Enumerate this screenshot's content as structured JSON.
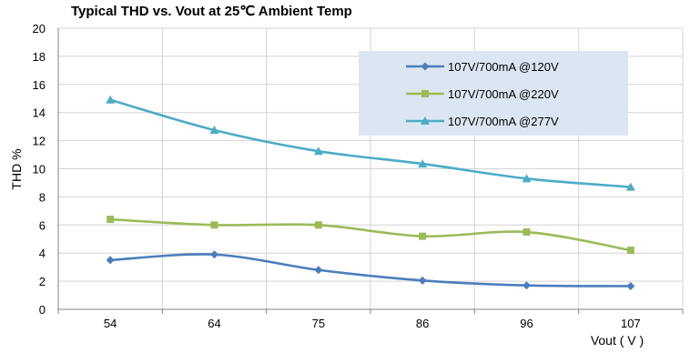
{
  "chart_data": {
    "type": "line",
    "title": "Typical THD vs. Vout at 25℃ Ambient Temp",
    "xlabel": "Vout ( V )",
    "ylabel": "THD %",
    "categories": [
      "54",
      "64",
      "75",
      "86",
      "96",
      "107"
    ],
    "ylim": [
      0,
      20
    ],
    "yticks": [
      "0",
      "2",
      "4",
      "6",
      "8",
      "10",
      "12",
      "14",
      "16",
      "18",
      "20"
    ],
    "grid": true,
    "legend_position": "top-right",
    "series": [
      {
        "name": "107V/700mA @120V",
        "color": "#4a7ebb",
        "marker": "diamond",
        "values": [
          3.5,
          3.9,
          2.8,
          2.05,
          1.7,
          1.65
        ]
      },
      {
        "name": "107V/700mA @220V",
        "color": "#9bbb59",
        "marker": "square",
        "values": [
          6.4,
          6.0,
          6.0,
          5.2,
          5.5,
          4.2
        ]
      },
      {
        "name": "107V/700mA @277V",
        "color": "#4bacc6",
        "marker": "triangle",
        "values": [
          14.9,
          12.75,
          11.25,
          10.35,
          9.3,
          8.7
        ]
      }
    ]
  }
}
